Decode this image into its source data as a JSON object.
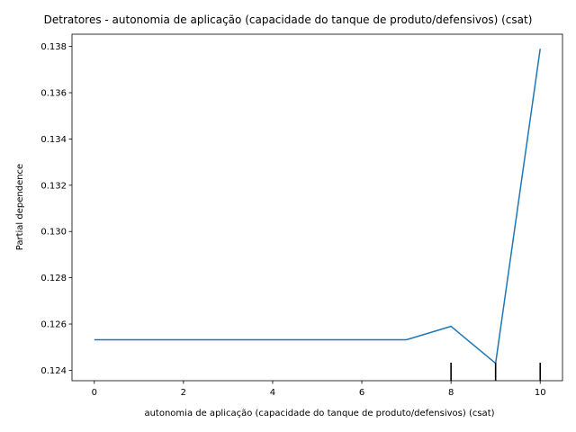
{
  "chart_data": {
    "type": "line",
    "title": "Detratores - autonomia de aplicação (capacidade do tanque de produto/defensivos) (csat)",
    "xlabel": "autonomia de aplicação (capacidade do tanque de produto/defensivos) (csat)",
    "ylabel": "Partial dependence",
    "xlim": [
      -0.5,
      10.5
    ],
    "ylim": [
      0.12355,
      0.13853
    ],
    "x_ticks": [
      0,
      2,
      4,
      6,
      8,
      10
    ],
    "x_tick_labels": [
      "0",
      "2",
      "4",
      "6",
      "8",
      "10"
    ],
    "y_ticks": [
      0.124,
      0.126,
      0.128,
      0.13,
      0.132,
      0.134,
      0.136,
      0.138
    ],
    "y_tick_labels": [
      "0.124",
      "0.126",
      "0.128",
      "0.130",
      "0.132",
      "0.134",
      "0.136",
      "0.138"
    ],
    "series": [
      {
        "x": [
          0,
          1,
          2,
          3,
          4,
          5,
          6,
          7,
          8,
          9,
          10
        ],
        "values": [
          0.12532,
          0.12532,
          0.12532,
          0.12532,
          0.12532,
          0.12532,
          0.12532,
          0.12532,
          0.1259,
          0.1243,
          0.1379
        ],
        "color": "#1f77b4"
      }
    ],
    "deciles": [
      8,
      9,
      10
    ],
    "grid": false,
    "legend": false
  }
}
